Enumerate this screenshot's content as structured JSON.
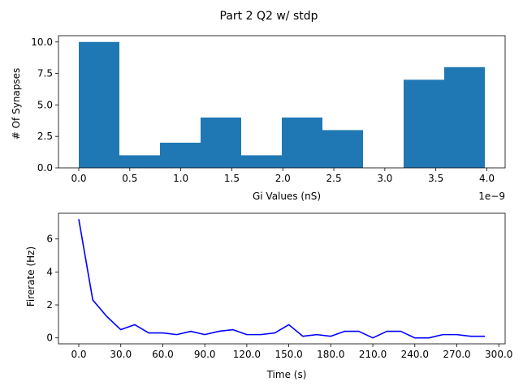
{
  "figure": {
    "suptitle": "Part 2 Q2 w/ stdp"
  },
  "colors": {
    "bar": "#1f77b4",
    "line": "#0000ff",
    "axis": "#000000"
  },
  "chart_data": [
    {
      "type": "bar",
      "subtype": "histogram",
      "title": "",
      "xlabel": "Gi Values (nS)",
      "ylabel": "# Of Synapses",
      "x_offset_label": "1e−9",
      "bin_edges": [
        0.0,
        0.398,
        0.796,
        1.194,
        1.592,
        1.99,
        2.388,
        2.786,
        3.184,
        3.582,
        3.98
      ],
      "values": [
        10,
        1,
        2,
        4,
        1,
        4,
        3,
        0,
        7,
        8
      ],
      "xlim": [
        -0.199,
        4.179
      ],
      "ylim": [
        0,
        10.5
      ],
      "xticks": [
        0.0,
        0.5,
        1.0,
        1.5,
        2.0,
        2.5,
        3.0,
        3.5,
        4.0
      ],
      "xtick_labels": [
        "0.0",
        "0.5",
        "1.0",
        "1.5",
        "2.0",
        "2.5",
        "3.0",
        "3.5",
        "4.0"
      ],
      "yticks": [
        0.0,
        2.5,
        5.0,
        7.5,
        10.0
      ],
      "ytick_labels": [
        "0.0",
        "2.5",
        "5.0",
        "7.5",
        "10.0"
      ],
      "grid": false
    },
    {
      "type": "line",
      "title": "",
      "xlabel": "Time (s)",
      "ylabel": "Firerate (Hz)",
      "x": [
        0,
        10,
        20,
        30,
        40,
        50,
        60,
        70,
        80,
        90,
        100,
        110,
        120,
        130,
        140,
        150,
        160,
        170,
        180,
        190,
        200,
        210,
        220,
        230,
        240,
        250,
        260,
        270,
        280,
        290
      ],
      "y": [
        7.2,
        2.3,
        1.3,
        0.5,
        0.8,
        0.3,
        0.3,
        0.2,
        0.4,
        0.2,
        0.4,
        0.5,
        0.2,
        0.2,
        0.3,
        0.8,
        0.1,
        0.2,
        0.1,
        0.4,
        0.4,
        0.0,
        0.4,
        0.4,
        0.0,
        0.0,
        0.2,
        0.2,
        0.1,
        0.1
      ],
      "xlim": [
        -14.5,
        304.5
      ],
      "ylim": [
        -0.36,
        7.56
      ],
      "xticks": [
        0,
        30,
        60,
        90,
        120,
        150,
        180,
        210,
        240,
        270,
        300
      ],
      "xtick_labels": [
        "0.0",
        "30.0",
        "60.0",
        "90.0",
        "120.0",
        "150.0",
        "180.0",
        "210.0",
        "240.0",
        "270.0",
        "300.0"
      ],
      "yticks": [
        0,
        2,
        4,
        6
      ],
      "ytick_labels": [
        "0",
        "2",
        "4",
        "6"
      ],
      "grid": false
    }
  ]
}
